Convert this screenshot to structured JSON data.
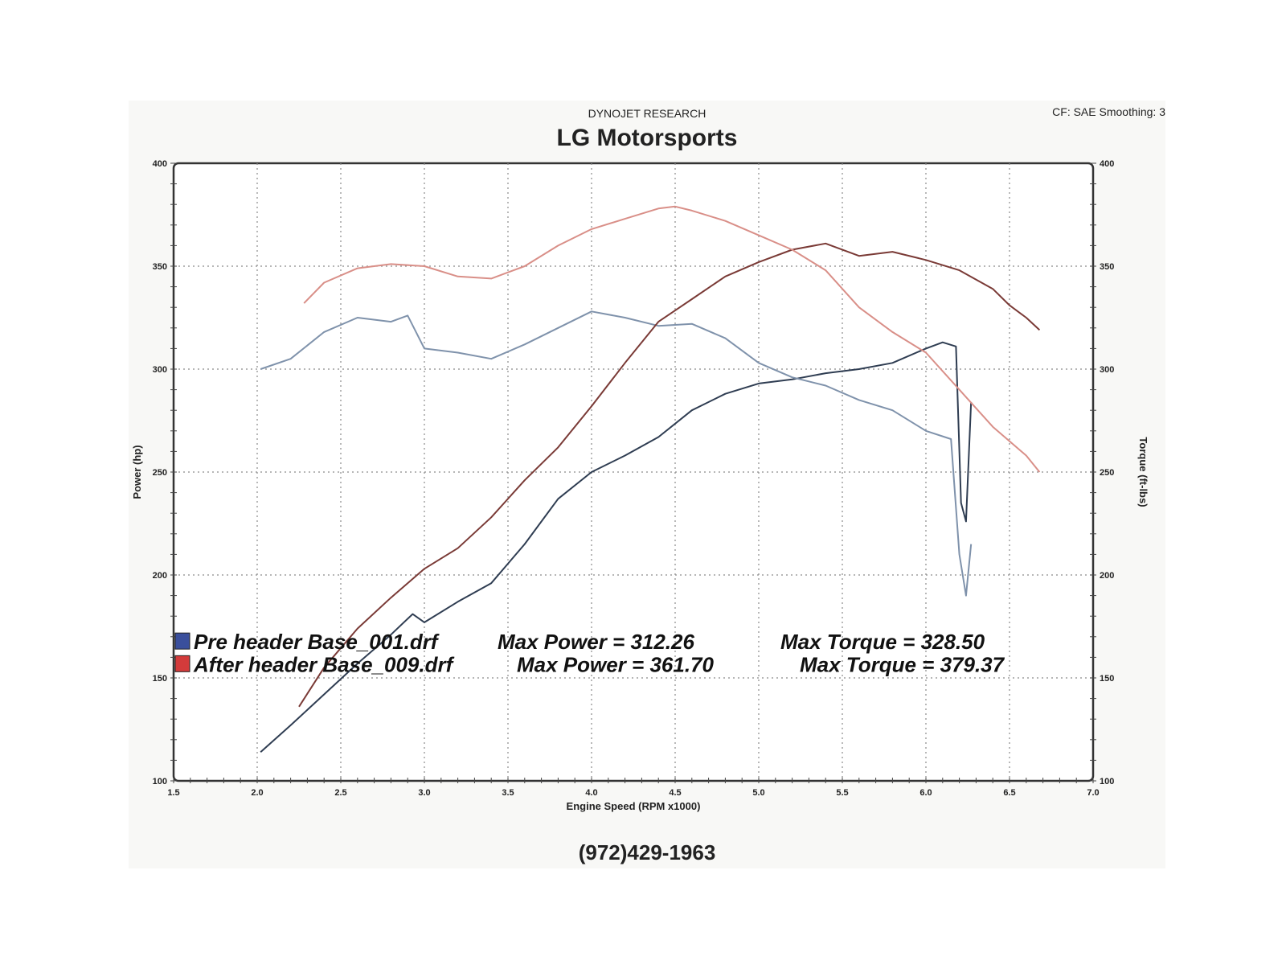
{
  "header": {
    "source": "DYNOJET RESEARCH",
    "settings": "CF: SAE  Smoothing: 3",
    "title": "LG Motorsports",
    "phone": "(972)429-1963"
  },
  "legend": [
    {
      "swatch_color": "#3a4f9c",
      "file": "Pre header Base_001.drf",
      "power_text": "Max Power = 312.26",
      "torque_text": "Max Torque = 328.50"
    },
    {
      "swatch_color": "#d33b3b",
      "file": "After header Base_009.drf",
      "power_text": "Max Power = 361.70",
      "torque_text": "Max Torque = 379.37"
    }
  ],
  "chart_data": {
    "type": "line",
    "title": "LG Motorsports",
    "xlabel": "Engine Speed (RPM x1000)",
    "ylabel": "Power (hp)",
    "y2label": "Torque (ft-lbs)",
    "xlim": [
      1.5,
      7.0
    ],
    "ylim": [
      100,
      400
    ],
    "y2lim": [
      100,
      400
    ],
    "x_ticks": [
      "1.5",
      "2.0",
      "2.5",
      "3.0",
      "3.5",
      "4.0",
      "4.5",
      "5.0",
      "5.5",
      "6.0",
      "6.5",
      "7.0"
    ],
    "y_ticks": [
      "100",
      "150",
      "200",
      "250",
      "300",
      "350",
      "400"
    ],
    "y2_ticks": [
      "100",
      "150",
      "200",
      "250",
      "300",
      "350",
      "400"
    ],
    "grid": true,
    "legend_position": "bottom-left",
    "series": [
      {
        "name": "Pre header Base_001.drf Max Power = 312.26",
        "measure": "power",
        "axis": "left",
        "color": "#2f3d52",
        "x": [
          2.02,
          2.2,
          2.4,
          2.6,
          2.8,
          2.93,
          3.0,
          3.2,
          3.4,
          3.6,
          3.8,
          4.0,
          4.2,
          4.4,
          4.6,
          4.8,
          5.0,
          5.2,
          5.4,
          5.6,
          5.8,
          6.0,
          6.1,
          6.18,
          6.21,
          6.24,
          6.27
        ],
        "y": [
          114,
          127,
          142,
          157,
          171,
          181,
          177,
          187,
          196,
          215,
          237,
          250,
          258,
          267,
          280,
          288,
          293,
          295,
          298,
          300,
          303,
          310,
          313,
          311,
          235,
          226,
          284
        ]
      },
      {
        "name": "Pre header Base_001.drf Max Torque = 328.50",
        "measure": "torque",
        "axis": "right",
        "color": "#7f92ab",
        "x": [
          2.02,
          2.2,
          2.4,
          2.6,
          2.8,
          2.9,
          3.0,
          3.2,
          3.4,
          3.6,
          3.8,
          4.0,
          4.2,
          4.4,
          4.6,
          4.8,
          5.0,
          5.2,
          5.4,
          5.6,
          5.8,
          6.0,
          6.15,
          6.2,
          6.24,
          6.27
        ],
        "y": [
          300,
          305,
          318,
          325,
          323,
          326,
          310,
          308,
          305,
          312,
          320,
          328,
          325,
          321,
          322,
          315,
          303,
          296,
          292,
          285,
          280,
          270,
          266,
          210,
          190,
          215
        ]
      },
      {
        "name": "After header Base_009.drf Max Power = 361.70",
        "measure": "power",
        "axis": "left",
        "color": "#7a3a36",
        "x": [
          2.25,
          2.4,
          2.6,
          2.8,
          3.0,
          3.2,
          3.4,
          3.6,
          3.8,
          4.0,
          4.2,
          4.4,
          4.6,
          4.8,
          5.0,
          5.2,
          5.4,
          5.6,
          5.8,
          6.0,
          6.2,
          6.4,
          6.5,
          6.6,
          6.68
        ],
        "y": [
          136,
          155,
          174,
          189,
          203,
          213,
          228,
          246,
          262,
          282,
          303,
          323,
          334,
          345,
          352,
          358,
          361,
          355,
          357,
          353,
          348,
          339,
          331,
          325,
          319
        ]
      },
      {
        "name": "After header Base_009.drf Max Torque = 379.37",
        "measure": "torque",
        "axis": "right",
        "color": "#d98f88",
        "x": [
          2.28,
          2.4,
          2.6,
          2.8,
          3.0,
          3.2,
          3.4,
          3.6,
          3.8,
          4.0,
          4.2,
          4.4,
          4.5,
          4.6,
          4.8,
          5.0,
          5.2,
          5.4,
          5.6,
          5.8,
          6.0,
          6.2,
          6.4,
          6.5,
          6.6,
          6.68
        ],
        "y": [
          332,
          342,
          349,
          351,
          350,
          345,
          344,
          350,
          360,
          368,
          373,
          378,
          379,
          377,
          372,
          365,
          358,
          348,
          330,
          318,
          308,
          290,
          272,
          265,
          258,
          250
        ]
      }
    ]
  }
}
